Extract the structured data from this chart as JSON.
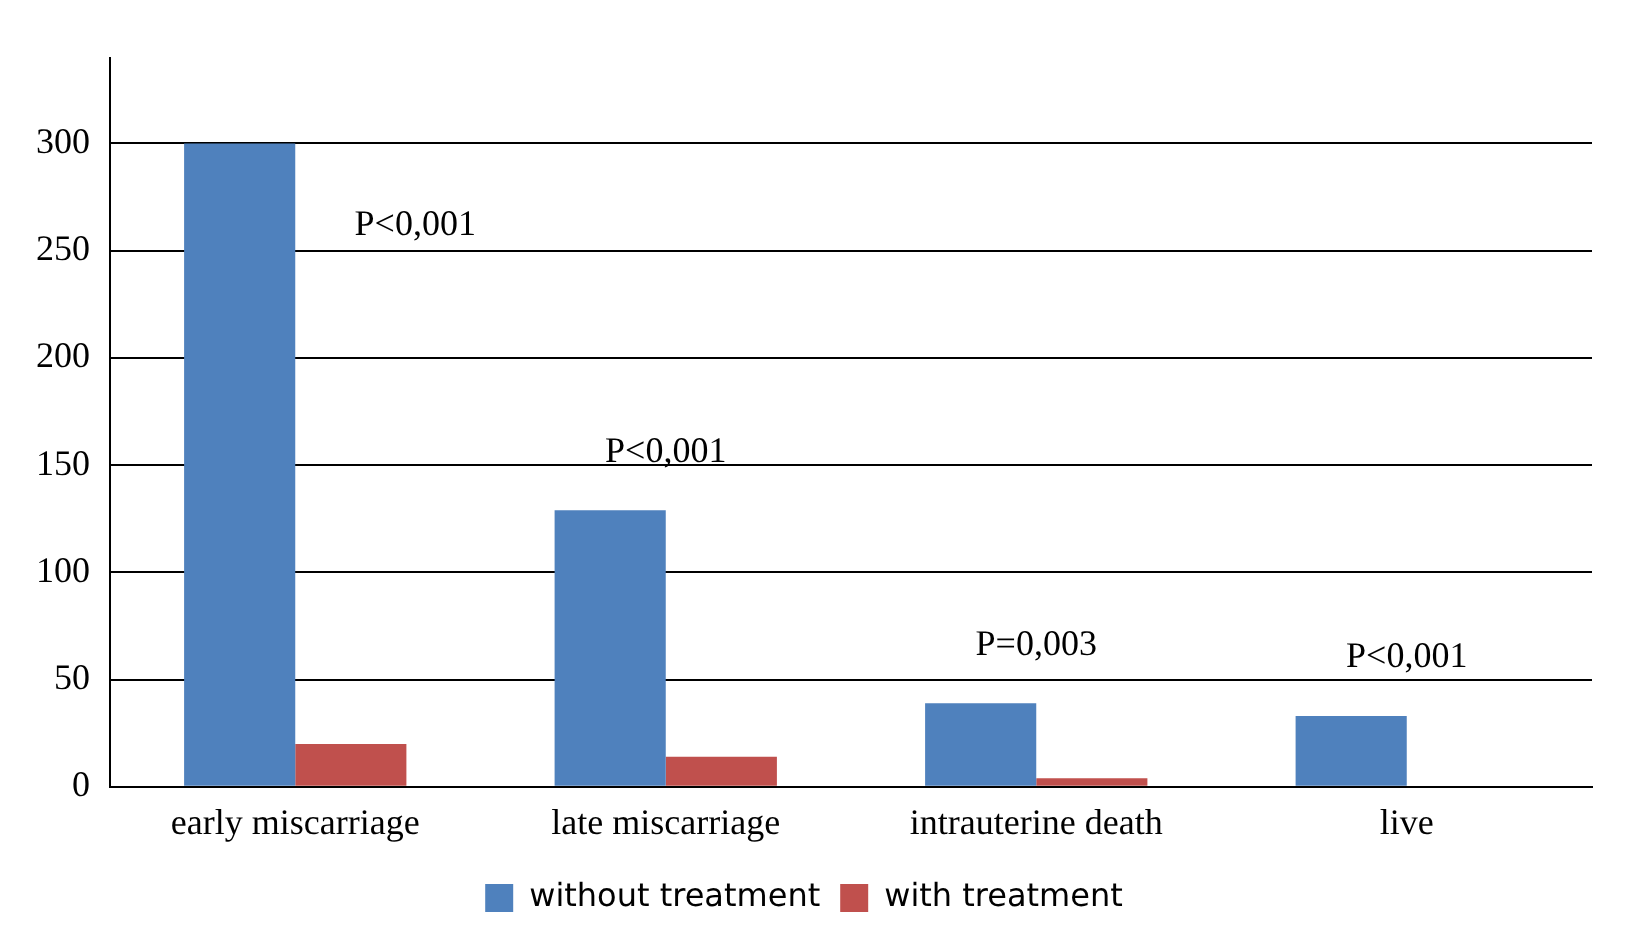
{
  "chart_data": {
    "type": "bar",
    "categories": [
      "early miscarriage",
      "late miscarriage",
      "intrauterine death",
      "live"
    ],
    "series": [
      {
        "name": "without treatment",
        "color": "#4f81bd",
        "values": [
          300,
          129,
          39,
          33
        ]
      },
      {
        "name": "with treatment",
        "color": "#c0504d",
        "values": [
          20,
          14,
          4,
          null
        ]
      }
    ],
    "ylim": [
      0,
      340
    ],
    "yticks": [
      0,
      50,
      100,
      150,
      200,
      250,
      300
    ],
    "grid": "y",
    "legend": "bottom",
    "annotations": [
      "P<0,001",
      "P<0,001",
      "P=0,003",
      "P<0,001"
    ]
  }
}
